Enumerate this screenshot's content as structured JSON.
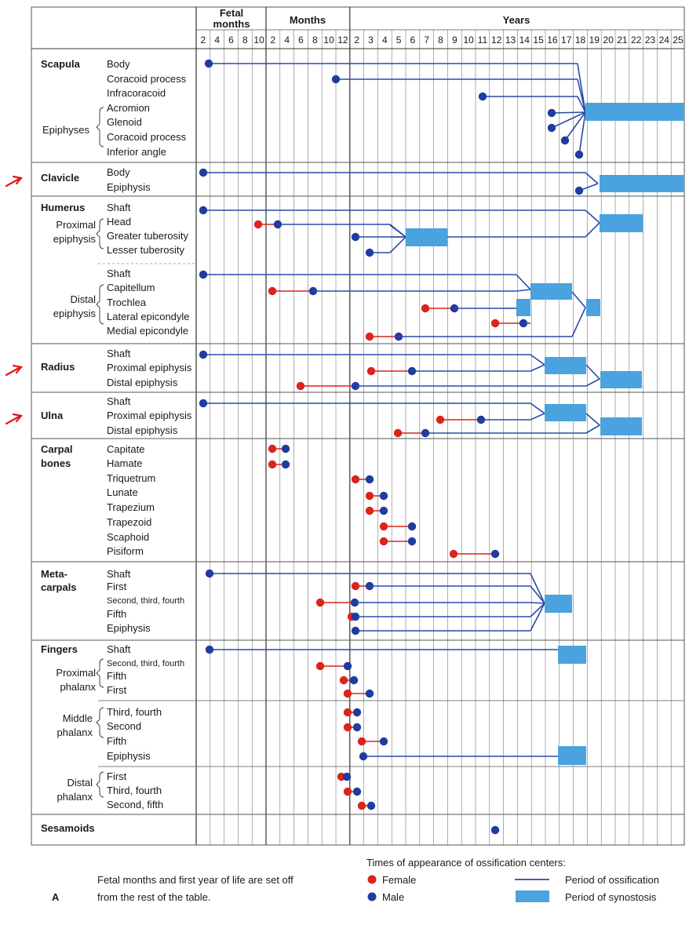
{
  "header": {
    "fetal_label": "Fetal months",
    "months_label": "Months",
    "years_label": "Years",
    "fetal_ticks": [
      "2",
      "4",
      "6",
      "8",
      "10"
    ],
    "month_ticks": [
      "2",
      "4",
      "6",
      "8",
      "10",
      "12"
    ],
    "year_ticks": [
      "2",
      "3",
      "4",
      "5",
      "6",
      "7",
      "8",
      "9",
      "10",
      "11",
      "12",
      "13",
      "14",
      "15",
      "16",
      "17",
      "18",
      "19",
      "20",
      "21",
      "22",
      "23",
      "24",
      "25"
    ]
  },
  "sections": [
    {
      "title": "Scapula",
      "group_label": "Epiphyses",
      "rows": [
        "Body",
        "Coracoid process",
        "Infracoracoid",
        "Acromion",
        "Glenoid",
        "Coracoid process",
        "Inferior angle"
      ]
    },
    {
      "title": "Clavicle",
      "marked": true,
      "rows": [
        "Body",
        "Epiphysis"
      ]
    },
    {
      "title": "Humerus",
      "group_label": "Proximal epiphysis",
      "rows": [
        "Shaft",
        "Head",
        "Greater tuberosity",
        "Lesser tuberosity"
      ]
    },
    {
      "title": "",
      "group_label": "Distal epiphysis",
      "rows": [
        "Shaft",
        "Capitellum",
        "Trochlea",
        "Lateral epicondyle",
        "Medial epicondyle"
      ]
    },
    {
      "title": "Radius",
      "marked": true,
      "rows": [
        "Shaft",
        "Proximal epiphysis",
        "Distal epiphysis"
      ]
    },
    {
      "title": "Ulna",
      "marked": true,
      "rows": [
        "Shaft",
        "Proximal epiphysis",
        "Distal epiphysis"
      ]
    },
    {
      "title": "Carpal bones",
      "rows": [
        "Capitate",
        "Hamate",
        "Triquetrum",
        "Lunate",
        "Trapezium",
        "Trapezoid",
        "Scaphoid",
        "Pisiform"
      ]
    },
    {
      "title": "Meta- carpals",
      "rows": [
        "Shaft",
        "First",
        "Second, third, fourth",
        "Fifth",
        "Epiphysis"
      ]
    },
    {
      "title": "Fingers",
      "group_label": "Proximal phalanx",
      "rows": [
        "Shaft",
        "Second, third, fourth",
        "Fifth",
        "First"
      ]
    },
    {
      "title": "",
      "group_label": "Middle phalanx",
      "rows": [
        "Third, fourth",
        "Second",
        "Fifth",
        "Epiphysis"
      ]
    },
    {
      "title": "",
      "group_label": "Distal phalanx",
      "rows": [
        "First",
        "Third, fourth",
        "Second, fifth"
      ]
    },
    {
      "title": "Sesamoids",
      "rows": []
    }
  ],
  "ossification": [
    {
      "row": "Scapula Body",
      "male_col": "fetal 3"
    },
    {
      "row": "Clavicle Body",
      "male_col": "fetal 2"
    },
    {
      "row": "Carpal Capitate",
      "female_col": "month 2",
      "male_col": "month 3"
    },
    {
      "row": "Carpal Pisiform",
      "female_col": "year 9",
      "male_col": "year 12"
    },
    {
      "row": "Sesamoids",
      "male_col": "year 12"
    }
  ],
  "legend": {
    "title": "Times of appearance of ossification centers:",
    "female": "Female",
    "male": "Male",
    "period_ossification": "Period of ossification",
    "period_synostosis": "Period of synostosis"
  },
  "caption": {
    "letter": "A",
    "text_line1": "Fetal months and first year of life are set off",
    "text_line2": "from the rest of the table."
  },
  "colors": {
    "female": "#d9251c",
    "male": "#1f3c9e",
    "line": "#2b4aa8",
    "synostosis": "#4aa3de",
    "grid": "#666666",
    "arrow": "#e01818"
  }
}
